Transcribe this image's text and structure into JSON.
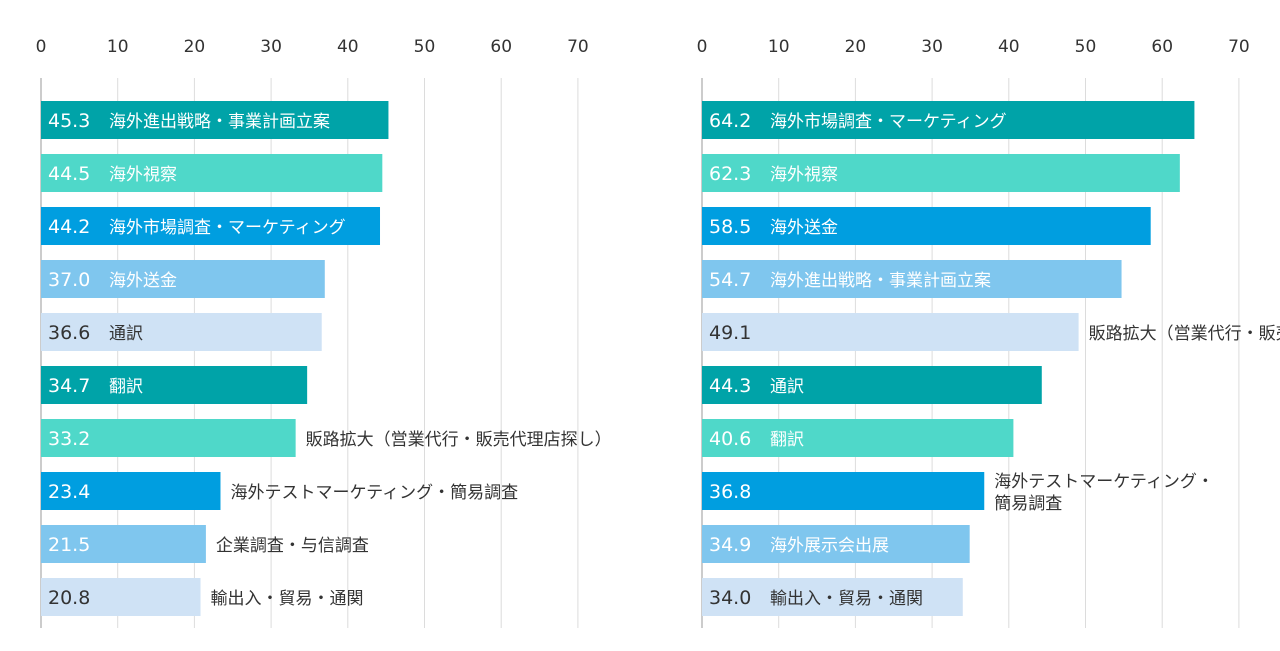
{
  "chart_data": [
    {
      "type": "bar",
      "orientation": "horizontal",
      "xlim": [
        0,
        70
      ],
      "xticks": [
        0,
        10,
        20,
        30,
        40,
        50,
        60,
        70
      ],
      "grid": true,
      "categories": [
        "海外進出戦略・事業計画立案",
        "海外視察",
        "海外市場調査・マーケティング",
        "海外送金",
        "通訳",
        "翻訳",
        "販路拡大（営業代行・販売代理店探し）",
        "海外テストマーケティング・簡易調査",
        "企業調査・与信調査",
        "輸出入・貿易・通関"
      ],
      "values": [
        45.3,
        44.5,
        44.2,
        37.0,
        36.6,
        34.7,
        33.2,
        23.4,
        21.5,
        20.8
      ],
      "value_labels": [
        "45.3",
        "44.5",
        "44.2",
        "37.0",
        "36.6",
        "34.7",
        "33.2",
        "23.4",
        "21.5",
        "20.8"
      ]
    },
    {
      "type": "bar",
      "orientation": "horizontal",
      "xlim": [
        0,
        70
      ],
      "xticks": [
        0,
        10,
        20,
        30,
        40,
        50,
        60,
        70
      ],
      "grid": true,
      "categories": [
        "海外市場調査・マーケティング",
        "海外視察",
        "海外送金",
        "海外進出戦略・事業計画立案",
        "販路拡大（営業代行・販売代理店探し）",
        "通訳",
        "翻訳",
        "海外テストマーケティング・\n簡易調査",
        "海外展示会出展",
        "輸出入・貿易・通関"
      ],
      "values": [
        64.2,
        62.3,
        58.5,
        54.7,
        49.1,
        44.3,
        40.6,
        36.8,
        34.9,
        34.0
      ],
      "value_labels": [
        "64.2",
        "62.3",
        "58.5",
        "54.7",
        "49.1",
        "44.3",
        "40.6",
        "36.8",
        "34.9",
        "34.0"
      ]
    }
  ],
  "colors": {
    "palette": [
      "#00a3a8",
      "#4fd8c9",
      "#009ee0",
      "#7fc6ee",
      "#cfe2f5"
    ],
    "light_text": "#ffffff",
    "dark_text": "#333333",
    "grid": "#dcdcdc",
    "axis": "#999999"
  }
}
